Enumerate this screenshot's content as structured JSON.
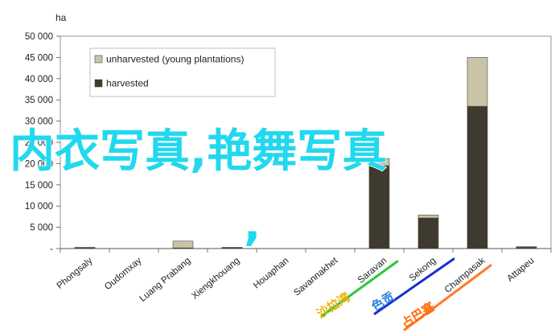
{
  "chart_data": {
    "type": "bar",
    "stacked": true,
    "y_unit": "ha",
    "ylim": [
      0,
      50000
    ],
    "ytick_labels": [
      "-",
      "5 000",
      "10 000",
      "15 000",
      "20 000",
      "25 000",
      "30 000",
      "35 000",
      "40 000",
      "45 000",
      "50 000"
    ],
    "categories": [
      "Phongsaly",
      "Oudomxay",
      "Luang Prabang",
      "Xiengkhouang",
      "Houaphan",
      "Savannakhet",
      "Saravan",
      "Sekong",
      "Champasak",
      "Attapeu"
    ],
    "series": [
      {
        "name": "harvested",
        "color": "#3e3a2f",
        "values": [
          200,
          0,
          150,
          250,
          0,
          0,
          19500,
          7200,
          33500,
          400
        ]
      },
      {
        "name": "unharvested (young plantations)",
        "color": "#c8c4a5",
        "values": [
          100,
          0,
          1600,
          50,
          0,
          0,
          1700,
          700,
          11500,
          50
        ]
      }
    ],
    "legend_position": "top-left",
    "grid": false
  },
  "overlay": {
    "headline": "内衣写真,艳舞写真",
    "headline_color": "#22d8ee",
    "comma": ",",
    "tags": [
      {
        "text": "沙拉湾",
        "color": "#f2b000",
        "line_color": "#29c93a"
      },
      {
        "text": "色贡",
        "color": "#2a7fe0",
        "line_color": "#1a2fd0"
      },
      {
        "text": "占巴塞",
        "color": "#ff6a00",
        "line_color": "#ff7a2a"
      }
    ]
  }
}
